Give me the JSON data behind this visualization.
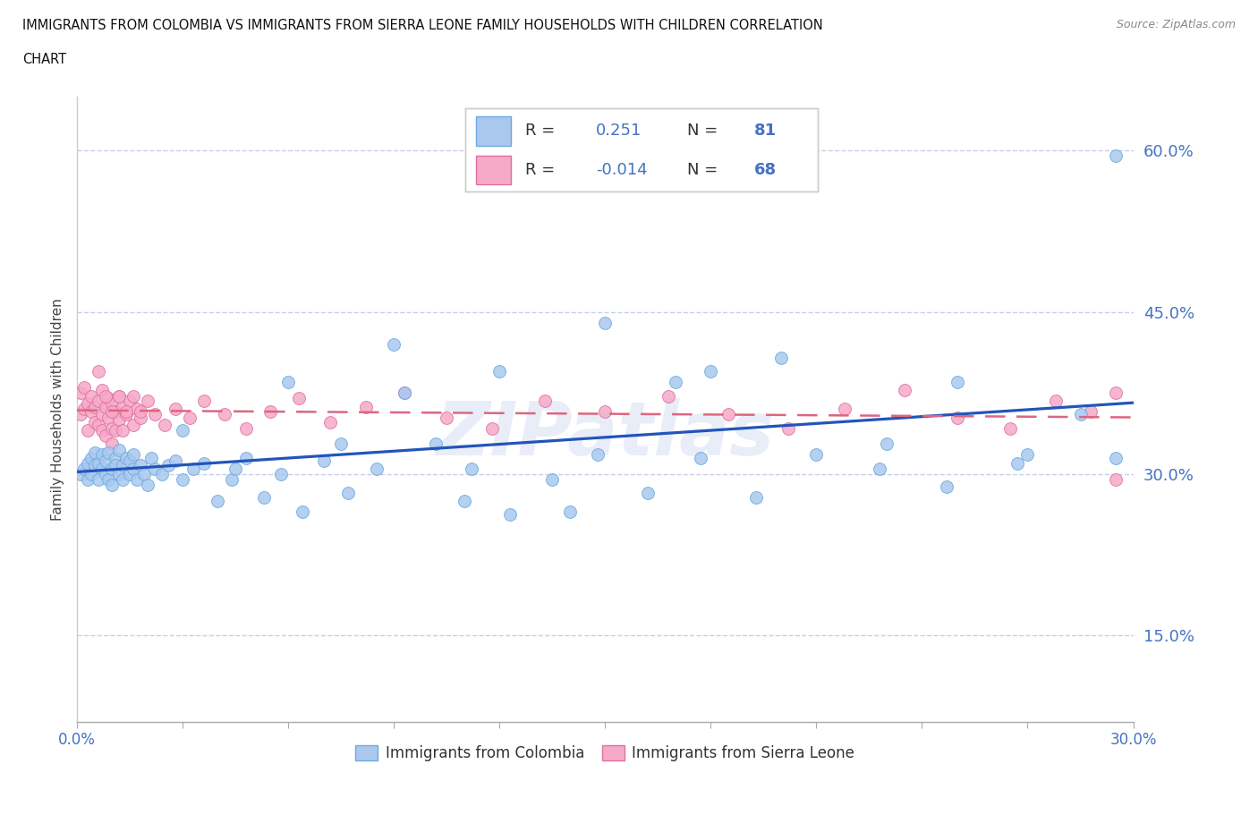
{
  "title_line1": "IMMIGRANTS FROM COLOMBIA VS IMMIGRANTS FROM SIERRA LEONE FAMILY HOUSEHOLDS WITH CHILDREN CORRELATION",
  "title_line2": "CHART",
  "source": "Source: ZipAtlas.com",
  "ylabel": "Family Households with Children",
  "ytick_values": [
    0.15,
    0.3,
    0.45,
    0.6
  ],
  "xmin": 0.0,
  "xmax": 0.3,
  "ymin": 0.07,
  "ymax": 0.65,
  "colombia_color": "#aac8ee",
  "colombia_edge": "#6aaae0",
  "sierraleone_color": "#f5aac8",
  "sierraleone_edge": "#e070a0",
  "trendline_colombia_color": "#2255bb",
  "trendline_sierraleone_color": "#dd6680",
  "R_colombia": 0.251,
  "N_colombia": 81,
  "R_sierraleone": -0.014,
  "N_sierraleone": 68,
  "colombia_x": [
    0.001,
    0.002,
    0.003,
    0.003,
    0.004,
    0.004,
    0.005,
    0.005,
    0.006,
    0.006,
    0.007,
    0.007,
    0.008,
    0.008,
    0.009,
    0.009,
    0.01,
    0.01,
    0.011,
    0.011,
    0.012,
    0.012,
    0.013,
    0.013,
    0.014,
    0.015,
    0.015,
    0.016,
    0.016,
    0.017,
    0.018,
    0.019,
    0.02,
    0.021,
    0.022,
    0.024,
    0.026,
    0.028,
    0.03,
    0.033,
    0.036,
    0.04,
    0.044,
    0.048,
    0.053,
    0.058,
    0.064,
    0.07,
    0.077,
    0.085,
    0.093,
    0.102,
    0.112,
    0.123,
    0.135,
    0.148,
    0.162,
    0.177,
    0.193,
    0.21,
    0.228,
    0.247,
    0.267,
    0.03,
    0.06,
    0.09,
    0.12,
    0.15,
    0.18,
    0.2,
    0.23,
    0.25,
    0.27,
    0.285,
    0.045,
    0.075,
    0.11,
    0.14,
    0.17,
    0.295,
    0.295
  ],
  "colombia_y": [
    0.3,
    0.305,
    0.31,
    0.295,
    0.315,
    0.3,
    0.308,
    0.32,
    0.295,
    0.31,
    0.305,
    0.318,
    0.3,
    0.312,
    0.295,
    0.32,
    0.305,
    0.29,
    0.315,
    0.308,
    0.3,
    0.322,
    0.308,
    0.295,
    0.315,
    0.3,
    0.312,
    0.305,
    0.318,
    0.295,
    0.308,
    0.3,
    0.29,
    0.315,
    0.305,
    0.3,
    0.308,
    0.312,
    0.295,
    0.305,
    0.31,
    0.275,
    0.295,
    0.315,
    0.278,
    0.3,
    0.265,
    0.312,
    0.282,
    0.305,
    0.375,
    0.328,
    0.305,
    0.262,
    0.295,
    0.318,
    0.282,
    0.315,
    0.278,
    0.318,
    0.305,
    0.288,
    0.31,
    0.34,
    0.385,
    0.42,
    0.395,
    0.44,
    0.395,
    0.408,
    0.328,
    0.385,
    0.318,
    0.355,
    0.305,
    0.328,
    0.275,
    0.265,
    0.385,
    0.315,
    0.595
  ],
  "sierraleone_x": [
    0.001,
    0.001,
    0.002,
    0.002,
    0.003,
    0.003,
    0.004,
    0.004,
    0.005,
    0.005,
    0.006,
    0.006,
    0.007,
    0.007,
    0.007,
    0.008,
    0.008,
    0.009,
    0.009,
    0.01,
    0.01,
    0.01,
    0.011,
    0.011,
    0.012,
    0.012,
    0.013,
    0.013,
    0.014,
    0.015,
    0.016,
    0.017,
    0.018,
    0.02,
    0.022,
    0.025,
    0.028,
    0.032,
    0.036,
    0.042,
    0.048,
    0.055,
    0.063,
    0.072,
    0.082,
    0.093,
    0.105,
    0.118,
    0.133,
    0.15,
    0.168,
    0.185,
    0.202,
    0.218,
    0.235,
    0.25,
    0.265,
    0.278,
    0.288,
    0.295,
    0.006,
    0.008,
    0.01,
    0.012,
    0.014,
    0.016,
    0.018,
    0.295
  ],
  "sierraleone_y": [
    0.355,
    0.375,
    0.36,
    0.38,
    0.365,
    0.34,
    0.358,
    0.372,
    0.348,
    0.362,
    0.345,
    0.368,
    0.355,
    0.378,
    0.34,
    0.362,
    0.335,
    0.352,
    0.37,
    0.342,
    0.328,
    0.365,
    0.34,
    0.358,
    0.372,
    0.35,
    0.362,
    0.34,
    0.355,
    0.368,
    0.345,
    0.36,
    0.352,
    0.368,
    0.355,
    0.345,
    0.36,
    0.352,
    0.368,
    0.355,
    0.342,
    0.358,
    0.37,
    0.348,
    0.362,
    0.375,
    0.352,
    0.342,
    0.368,
    0.358,
    0.372,
    0.355,
    0.342,
    0.36,
    0.378,
    0.352,
    0.342,
    0.368,
    0.358,
    0.375,
    0.395,
    0.372,
    0.358,
    0.372,
    0.358,
    0.372,
    0.358,
    0.295
  ],
  "watermark": "ZIPatlas",
  "grid_color": "#c8d0e8",
  "background_color": "#ffffff",
  "right_axis_label_color": "#4472c4",
  "legend_R_color": "#333333",
  "legend_N_color": "#4472c4",
  "legend_R_val_color": "#4472c4"
}
